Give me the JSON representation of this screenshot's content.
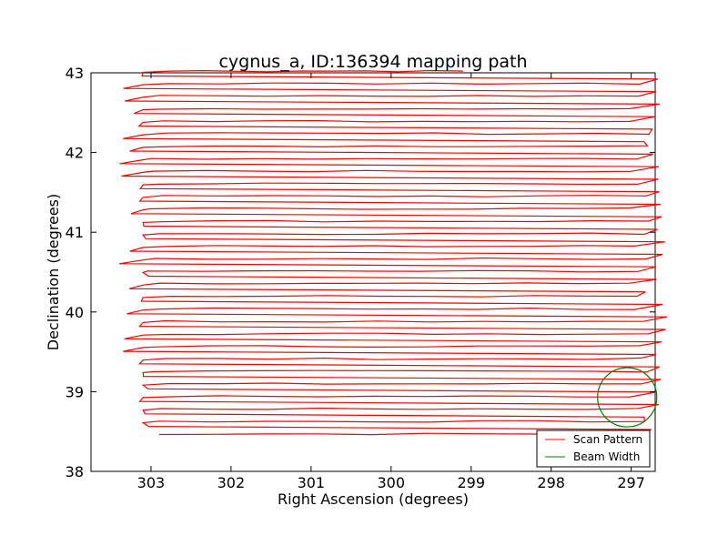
{
  "chart_data": {
    "type": "line",
    "title": "cygnus_a, ID:136394 mapping path",
    "xlabel": "Right Ascension (degrees)",
    "ylabel": "Declination (degrees)",
    "xlim": [
      303.75,
      296.7
    ],
    "ylim": [
      38,
      43
    ],
    "xticks": [
      303,
      302,
      301,
      300,
      299,
      298,
      297
    ],
    "yticks": [
      38,
      39,
      40,
      41,
      42,
      43
    ],
    "x_inverted": true,
    "grid": false,
    "legend_position": "bottom-right",
    "colors": {
      "scan": "#ff0000",
      "beam": "#008000"
    },
    "series": [
      {
        "name": "Scan Pattern",
        "color": "#ff0000",
        "style": "boustrophedon raster scan, 30 rows",
        "dec_start": 38.47,
        "dec_step": 0.157,
        "ra_west": 302.9,
        "ra_east": 296.9,
        "end_ra": 299.1
      },
      {
        "name": "Beam Width",
        "color": "#008000",
        "shape": "circle",
        "center": [
          297.05,
          38.93
        ],
        "radius_deg": 0.37
      }
    ]
  }
}
